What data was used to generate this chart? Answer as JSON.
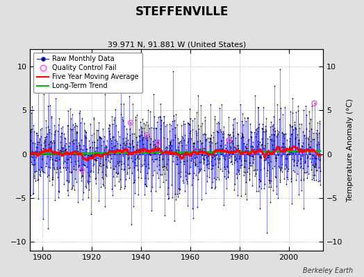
{
  "title": "STEFFENVILLE",
  "subtitle": "39.971 N, 91.881 W (United States)",
  "attribution": "Berkeley Earth",
  "ylabel": "Temperature Anomaly (°C)",
  "xlim": [
    1895,
    2014
  ],
  "ylim": [
    -11,
    12
  ],
  "yticks": [
    -10,
    -5,
    0,
    5,
    10
  ],
  "xticks": [
    1900,
    1920,
    1940,
    1960,
    1980,
    2000
  ],
  "background_color": "#e0e0e0",
  "plot_bg_color": "#ffffff",
  "raw_line_color": "#3333ff",
  "raw_marker_color": "#000000",
  "qc_fail_color": "#ff44ff",
  "moving_avg_color": "#ff0000",
  "trend_color": "#00bb00",
  "seed": 17,
  "start_year": 1895,
  "end_year": 2013,
  "noise_std": 2.5,
  "trend_slope": 0.003,
  "moving_avg_window": 60,
  "num_qc_fails": 6
}
